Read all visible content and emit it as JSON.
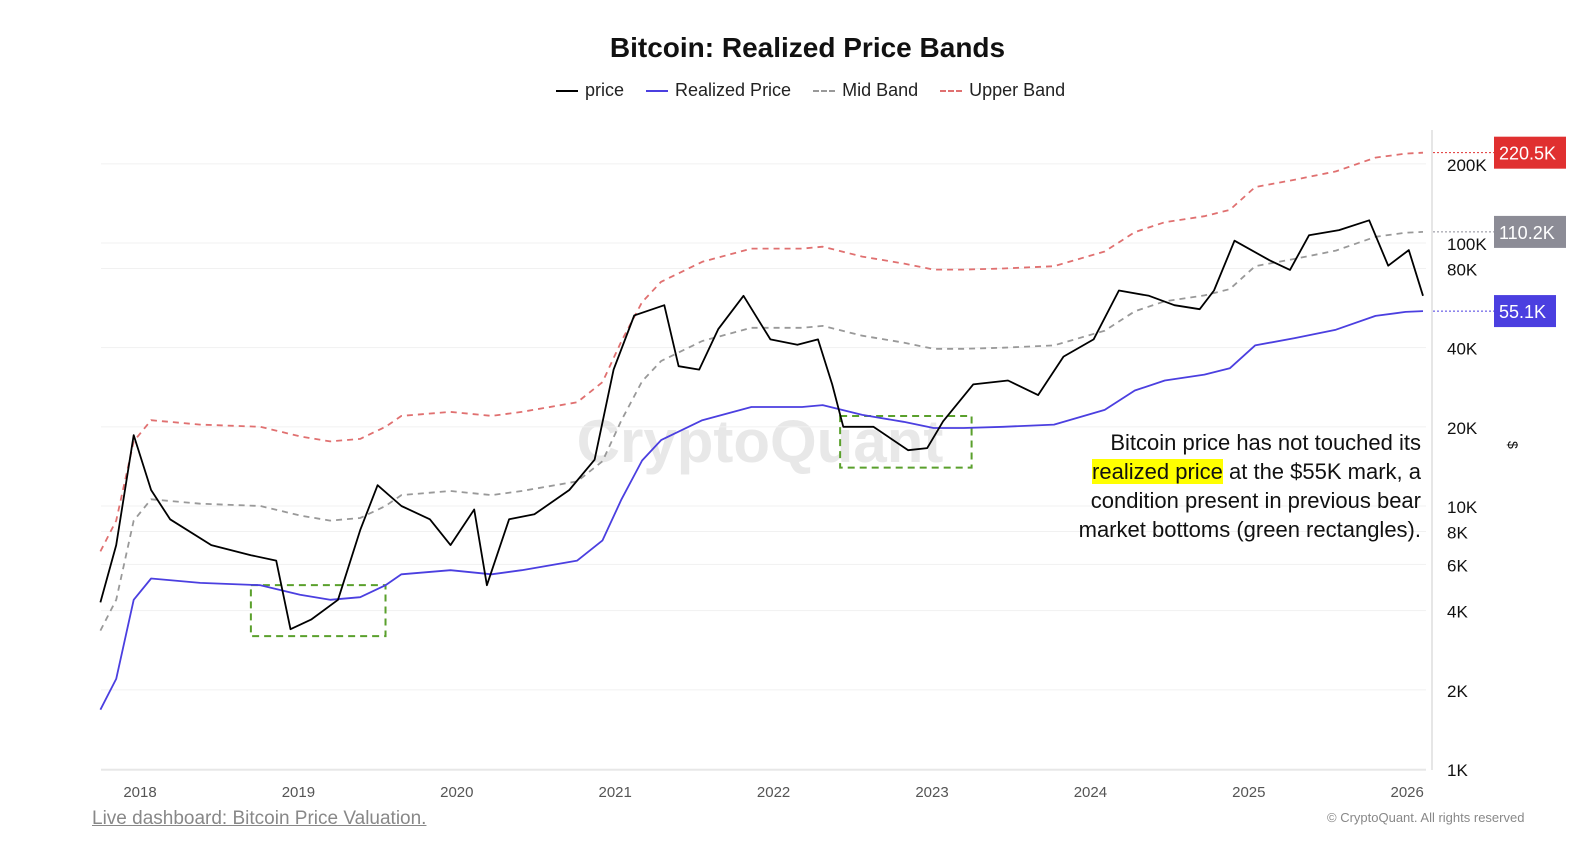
{
  "chart_data": {
    "type": "line",
    "title": "Bitcoin: Realized Price Bands",
    "yscale": "log",
    "ylim": [
      1000,
      250000
    ],
    "xlim": [
      2017.75,
      2026.15
    ],
    "x_ticks": [
      "2018",
      "2019",
      "2020",
      "2021",
      "2022",
      "2023",
      "2024",
      "2025",
      "2026"
    ],
    "y_ticks": [
      "1K",
      "2K",
      "4K",
      "6K",
      "8K",
      "10K",
      "20K",
      "40K",
      "80K",
      "100K",
      "200K"
    ],
    "ylabel": "$",
    "grid": true,
    "legend_position": "top",
    "series": [
      {
        "name": "price",
        "color": "#000000",
        "style": "solid",
        "x": [
          2017.75,
          2017.85,
          2017.96,
          2018.07,
          2018.19,
          2018.45,
          2018.7,
          2018.86,
          2018.95,
          2019.08,
          2019.25,
          2019.39,
          2019.5,
          2019.65,
          2019.83,
          2019.96,
          2020.11,
          2020.19,
          2020.33,
          2020.49,
          2020.71,
          2020.87,
          2020.99,
          2021.12,
          2021.31,
          2021.4,
          2021.53,
          2021.65,
          2021.81,
          2021.98,
          2022.15,
          2022.28,
          2022.37,
          2022.44,
          2022.63,
          2022.85,
          2022.97,
          2023.07,
          2023.26,
          2023.48,
          2023.67,
          2023.83,
          2024.02,
          2024.18,
          2024.37,
          2024.53,
          2024.69,
          2024.78,
          2024.91,
          2025.13,
          2025.26,
          2025.38,
          2025.57,
          2025.76,
          2025.88,
          2026.01,
          2026.1
        ],
        "values": [
          4300,
          7100,
          18600,
          11500,
          8900,
          7100,
          6500,
          6200,
          3400,
          3700,
          4400,
          8100,
          12000,
          10000,
          8900,
          7100,
          9700,
          5000,
          8900,
          9300,
          11500,
          15000,
          33000,
          53000,
          58000,
          34000,
          33000,
          47000,
          63000,
          43000,
          41000,
          43000,
          29000,
          20000,
          20000,
          16300,
          16600,
          21000,
          29000,
          30000,
          26400,
          37000,
          43000,
          66000,
          63000,
          58000,
          56000,
          66000,
          102000,
          86000,
          79000,
          107000,
          112000,
          122000,
          82000,
          94000,
          63000
        ]
      },
      {
        "name": "Realized Price",
        "color": "#4b3fe0",
        "style": "solid",
        "x": [
          2017.75,
          2017.85,
          2017.96,
          2018.07,
          2018.38,
          2018.76,
          2019.01,
          2019.2,
          2019.39,
          2019.55,
          2019.65,
          2019.96,
          2020.22,
          2020.41,
          2020.76,
          2020.92,
          2021.04,
          2021.17,
          2021.29,
          2021.55,
          2021.86,
          2022.18,
          2022.31,
          2022.56,
          2022.82,
          2023.01,
          2023.2,
          2023.45,
          2023.77,
          2024.09,
          2024.28,
          2024.47,
          2024.72,
          2024.88,
          2025.04,
          2025.29,
          2025.55,
          2025.8,
          2025.99,
          2026.1
        ],
        "values": [
          1680,
          2200,
          4400,
          5300,
          5100,
          5000,
          4600,
          4400,
          4500,
          5000,
          5500,
          5700,
          5500,
          5700,
          6200,
          7400,
          10600,
          14900,
          17800,
          21200,
          23800,
          23800,
          24200,
          22200,
          20900,
          19800,
          19800,
          20000,
          20400,
          23200,
          27500,
          30000,
          31600,
          33400,
          40800,
          43500,
          46800,
          52800,
          54700,
          55100
        ]
      },
      {
        "name": "Mid Band",
        "color": "#999999",
        "style": "dashed",
        "x": [
          2017.75,
          2017.85,
          2017.96,
          2018.07,
          2018.38,
          2018.76,
          2019.01,
          2019.2,
          2019.39,
          2019.55,
          2019.65,
          2019.96,
          2020.22,
          2020.41,
          2020.76,
          2020.92,
          2021.04,
          2021.17,
          2021.29,
          2021.55,
          2021.86,
          2022.18,
          2022.31,
          2022.56,
          2022.82,
          2023.01,
          2023.2,
          2023.45,
          2023.77,
          2024.09,
          2024.28,
          2024.47,
          2024.72,
          2024.88,
          2025.04,
          2025.29,
          2025.55,
          2025.8,
          2025.99,
          2026.1
        ],
        "values": [
          3360,
          4400,
          8800,
          10600,
          10200,
          10000,
          9200,
          8800,
          9000,
          10000,
          11000,
          11400,
          11000,
          11400,
          12400,
          14800,
          21200,
          29800,
          35600,
          42400,
          47600,
          47600,
          48400,
          44400,
          41800,
          39600,
          39600,
          40000,
          40800,
          46400,
          55000,
          60000,
          63200,
          66800,
          81600,
          87000,
          93600,
          105600,
          109400,
          110200
        ]
      },
      {
        "name": "Upper Band",
        "color": "#e07070",
        "style": "dashed",
        "x": [
          2017.75,
          2017.85,
          2017.96,
          2018.07,
          2018.38,
          2018.76,
          2019.01,
          2019.2,
          2019.39,
          2019.55,
          2019.65,
          2019.96,
          2020.22,
          2020.41,
          2020.76,
          2020.92,
          2021.04,
          2021.17,
          2021.29,
          2021.55,
          2021.86,
          2022.18,
          2022.31,
          2022.56,
          2022.82,
          2023.01,
          2023.2,
          2023.45,
          2023.77,
          2024.09,
          2024.28,
          2024.47,
          2024.72,
          2024.88,
          2025.04,
          2025.29,
          2025.55,
          2025.8,
          2025.99,
          2026.1
        ],
        "values": [
          6720,
          8800,
          17600,
          21200,
          20400,
          20000,
          18400,
          17600,
          18000,
          20000,
          22000,
          22800,
          22000,
          22800,
          24800,
          29600,
          42400,
          59600,
          71200,
          84800,
          95200,
          95200,
          96800,
          88800,
          83600,
          79200,
          79200,
          80000,
          81600,
          92800,
          110000,
          120000,
          126400,
          133600,
          163200,
          174000,
          187200,
          211200,
          218800,
          220500
        ]
      }
    ],
    "last_value_labels": [
      {
        "series": "Upper Band",
        "text": "220.5K",
        "color": "#e03030"
      },
      {
        "series": "Mid Band",
        "text": "110.2K",
        "color": "#8c8c96"
      },
      {
        "series": "Realized Price",
        "text": "55.1K",
        "color": "#4b3fe0"
      }
    ],
    "highlight_boxes": [
      {
        "x": [
          2018.7,
          2019.55
        ],
        "y": [
          3200,
          5000
        ],
        "color": "#5aa02c"
      },
      {
        "x": [
          2022.42,
          2023.25
        ],
        "y": [
          14000,
          22000
        ],
        "color": "#5aa02c"
      }
    ],
    "annotation": {
      "before": "Bitcoin price has not touched its",
      "highlight": "realized price",
      "after": " at the $55K mark, a",
      "line3": "condition present in previous bear",
      "line4": "market bottoms (green rectangles)."
    },
    "watermark": "CryptoQuant"
  },
  "footer": {
    "link": "Live dashboard: Bitcoin Price Valuation.",
    "copyright": "© CryptoQuant. All rights reserved"
  }
}
